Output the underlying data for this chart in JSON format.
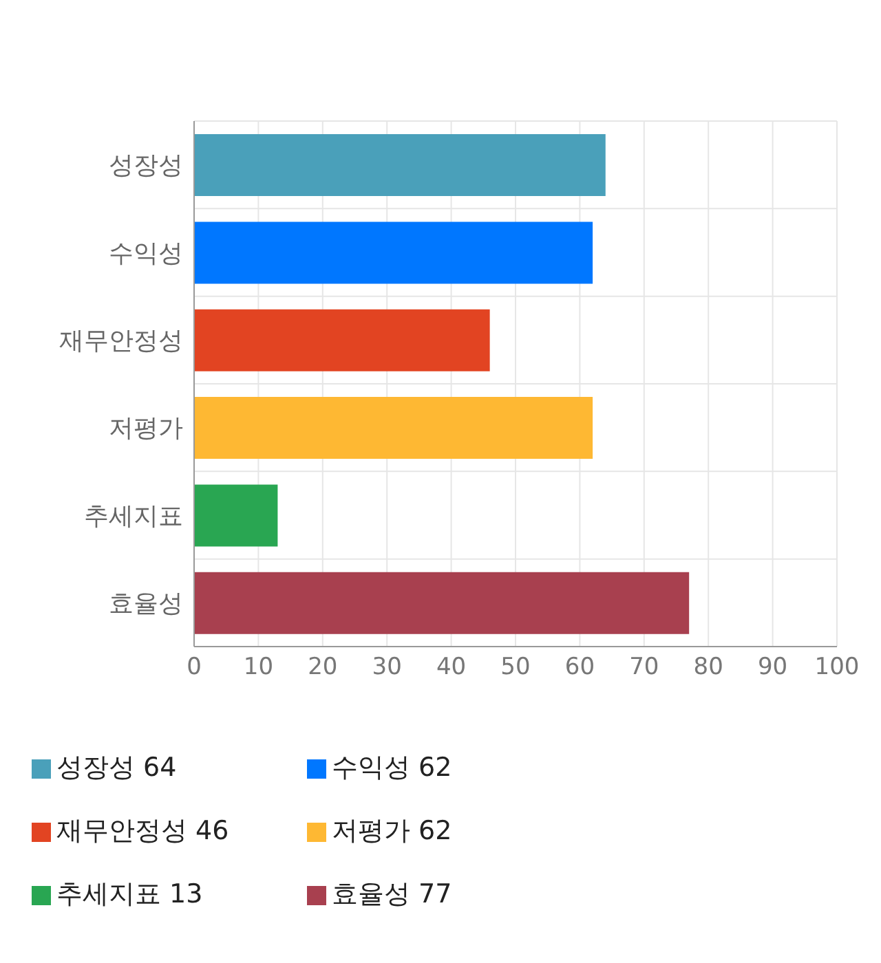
{
  "chart_data": {
    "type": "bar",
    "orientation": "horizontal",
    "stacked": true,
    "categories": [
      "성장성",
      "수익성",
      "재무안정성",
      "저평가",
      "추세지표",
      "효율성"
    ],
    "series": [
      {
        "name": "성장성 64",
        "color": "#4aa0ba",
        "values": [
          64,
          null,
          null,
          null,
          null,
          null
        ]
      },
      {
        "name": "수익성 62",
        "color": "#0077ff",
        "values": [
          null,
          62,
          null,
          null,
          null,
          null
        ]
      },
      {
        "name": "재무안정성 46",
        "color": "#e24422",
        "values": [
          null,
          null,
          46,
          null,
          null,
          null
        ]
      },
      {
        "name": "저평가 62",
        "color": "#feb833",
        "values": [
          null,
          null,
          null,
          62,
          null,
          null
        ]
      },
      {
        "name": "추세지표 13",
        "color": "#29a652",
        "values": [
          null,
          null,
          null,
          null,
          13,
          null
        ]
      },
      {
        "name": "효율성 77",
        "color": "#a8404f",
        "values": [
          null,
          null,
          null,
          null,
          null,
          77
        ]
      }
    ],
    "xlim": [
      0,
      100
    ],
    "xticks": [
      0,
      10,
      20,
      30,
      40,
      50,
      60,
      70,
      80,
      90,
      100
    ],
    "grid": true,
    "legend": "bottom"
  }
}
